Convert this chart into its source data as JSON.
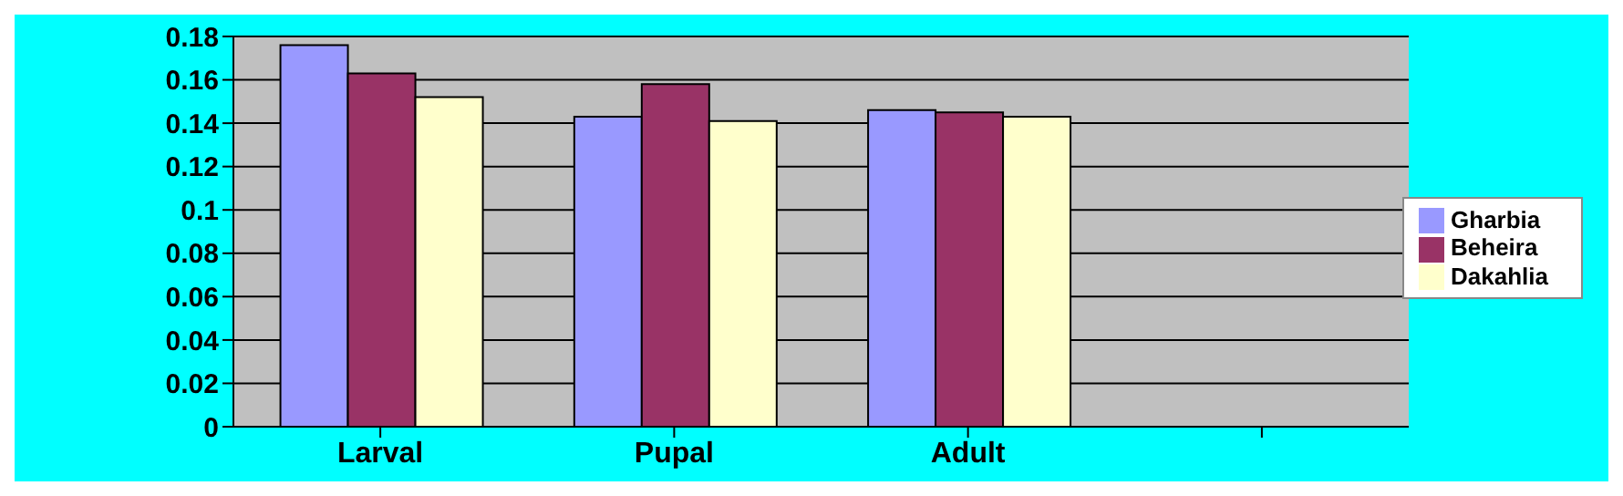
{
  "chart_data": {
    "type": "bar",
    "categories": [
      "Larval",
      "Pupal",
      "Adult",
      null
    ],
    "series": [
      {
        "name": "Gharbia",
        "color": "#9999ff",
        "values": [
          0.176,
          0.143,
          0.146,
          null
        ]
      },
      {
        "name": "Beheira",
        "color": "#993366",
        "values": [
          0.163,
          0.158,
          0.145,
          null
        ]
      },
      {
        "name": "Dakahlia",
        "color": "#ffffcc",
        "values": [
          0.152,
          0.141,
          0.143,
          null
        ]
      }
    ],
    "ylim": [
      0,
      0.18
    ],
    "yticks": [
      0,
      0.02,
      0.04,
      0.06,
      0.08,
      0.1,
      0.12,
      0.14,
      0.16,
      0.18
    ],
    "grid": "y",
    "legend": "right"
  }
}
